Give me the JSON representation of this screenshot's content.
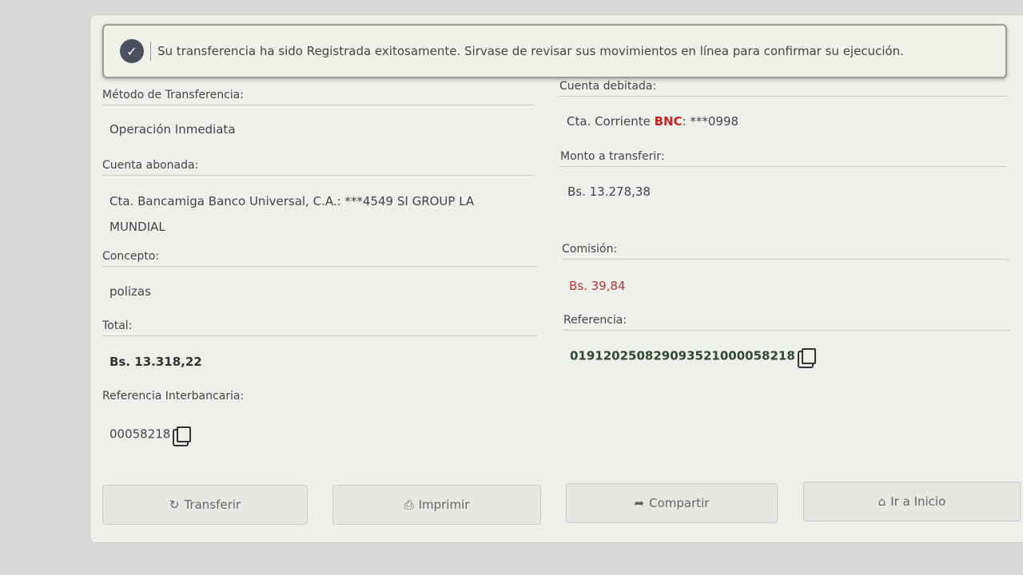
{
  "alert": {
    "icon": "check-circle-icon",
    "message": "Su transferencia ha sido Registrada exitosamente. Sirvase de revisar sus movimientos en línea para confirmar su ejecución."
  },
  "left": [
    {
      "label": "Método de Transferencia:",
      "value": "Operación Inmediata"
    },
    {
      "label": "Cuenta abonada:",
      "value": "Cta. Bancamiga Banco Universal, C.A.: ***4549 SI GROUP LA MUNDIAL"
    },
    {
      "label": "Concepto:",
      "value": "polizas"
    },
    {
      "label": "Total:",
      "value": "Bs. 13.318,22"
    },
    {
      "label": "Referencia Interbancaria:",
      "value": "00058218"
    }
  ],
  "right": {
    "cuenta_label": "Cuenta debitada:",
    "cuenta_prefix": "Cta. Corriente ",
    "cuenta_bank": "BNC",
    "cuenta_suffix": ": ***0998",
    "monto_label": "Monto a transferir:",
    "monto": "Bs. 13.278,38",
    "comision_label": "Comisión:",
    "comision": "Bs. 39,84",
    "referencia_label": "Referencia:",
    "referencia": "019120250829093521000058218"
  },
  "buttons": [
    {
      "label": "Transferir",
      "icon": "refresh-icon"
    },
    {
      "label": "Imprimir",
      "icon": "print-icon"
    },
    {
      "label": "Compartir",
      "icon": "share-icon"
    },
    {
      "label": "Ir a Inicio",
      "icon": "home-icon"
    }
  ],
  "colors": {
    "bank": "#cc2222",
    "commission": "#bb3333",
    "reference": "#2e4a2e"
  }
}
